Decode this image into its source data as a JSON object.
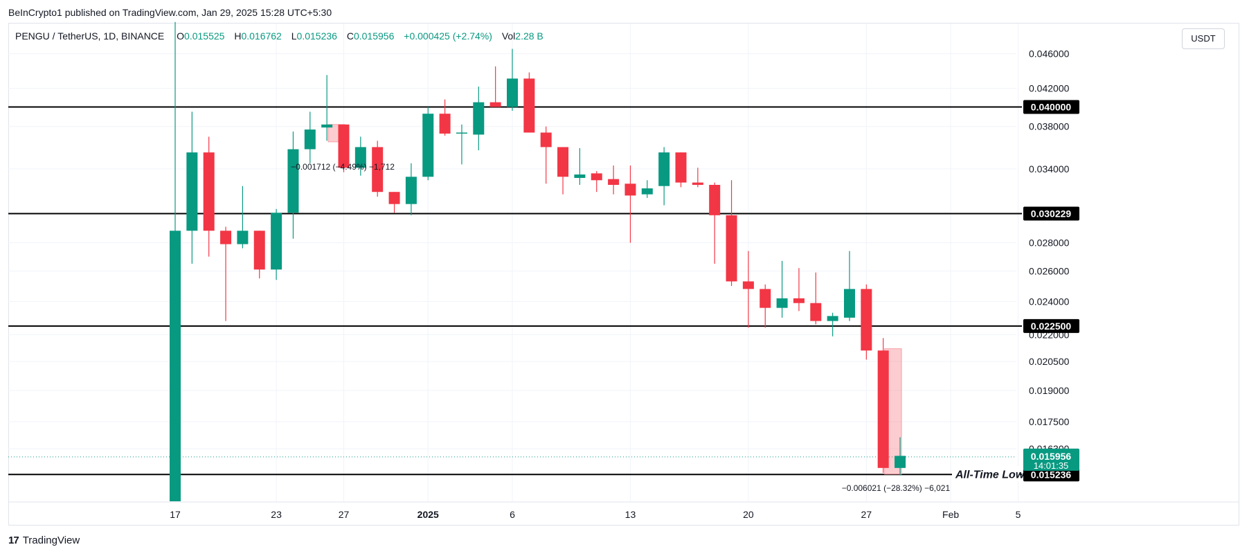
{
  "header": {
    "published_by": "BeInCrypto1 published on TradingView.com, Jan 29, 2025 15:28 UTC+5:30"
  },
  "legend": {
    "symbol": "PENGU / TetherUS, 1D, BINANCE",
    "o_label": "O",
    "o_value": "0.015525",
    "h_label": "H",
    "h_value": "0.016762",
    "l_label": "L",
    "l_value": "0.015236",
    "c_label": "C",
    "c_value": "0.015956",
    "change": "+0.000425 (+2.74%)",
    "vol_label": "Vol",
    "vol_value": "2.28 B"
  },
  "currency_button": "USDT",
  "footer": {
    "brand": "TradingView",
    "logo_text": "17"
  },
  "colors": {
    "up": "#089981",
    "down": "#f23645",
    "level": "#000000",
    "grid": "#f0f3fa"
  },
  "chart_data": {
    "type": "candlestick",
    "title": "PENGU / TetherUS, 1D, BINANCE",
    "scale": "log",
    "ylim": [
      0.0142,
      0.0498
    ],
    "y_ticks": [
      "0.046000",
      "0.042000",
      "0.038000",
      "0.034000",
      "0.028000",
      "0.026000",
      "0.024000",
      "0.022000",
      "0.020500",
      "0.019000",
      "0.017500",
      "0.016300"
    ],
    "x_ticks": [
      {
        "label": "17",
        "i": 0
      },
      {
        "label": "23",
        "i": 6
      },
      {
        "label": "27",
        "i": 10
      },
      {
        "label": "2025",
        "i": 15
      },
      {
        "label": "6",
        "i": 20
      },
      {
        "label": "13",
        "i": 27
      },
      {
        "label": "20",
        "i": 34
      },
      {
        "label": "27",
        "i": 41
      },
      {
        "label": "Feb",
        "i": 46
      },
      {
        "label": "5",
        "i": 50
      }
    ],
    "candles": [
      {
        "o": 0.0142,
        "h": 0.05,
        "l": 0.0142,
        "c": 0.0289
      },
      {
        "o": 0.0289,
        "h": 0.0395,
        "l": 0.0265,
        "c": 0.0355
      },
      {
        "o": 0.0355,
        "h": 0.037,
        "l": 0.027,
        "c": 0.0289
      },
      {
        "o": 0.0289,
        "h": 0.0292,
        "l": 0.0228,
        "c": 0.0279
      },
      {
        "o": 0.0279,
        "h": 0.0325,
        "l": 0.0276,
        "c": 0.0289
      },
      {
        "o": 0.0289,
        "h": 0.0289,
        "l": 0.0255,
        "c": 0.0261
      },
      {
        "o": 0.0261,
        "h": 0.0306,
        "l": 0.0254,
        "c": 0.0303
      },
      {
        "o": 0.0303,
        "h": 0.0375,
        "l": 0.0283,
        "c": 0.0358
      },
      {
        "o": 0.0358,
        "h": 0.0395,
        "l": 0.0345,
        "c": 0.0377
      },
      {
        "o": 0.0379,
        "h": 0.0435,
        "l": 0.0366,
        "c": 0.0382
      },
      {
        "o": 0.0382,
        "h": 0.0382,
        "l": 0.0337,
        "c": 0.0341
      },
      {
        "o": 0.0341,
        "h": 0.037,
        "l": 0.0334,
        "c": 0.036
      },
      {
        "o": 0.036,
        "h": 0.0366,
        "l": 0.0316,
        "c": 0.032
      },
      {
        "o": 0.032,
        "h": 0.032,
        "l": 0.0303,
        "c": 0.031
      },
      {
        "o": 0.031,
        "h": 0.0345,
        "l": 0.0301,
        "c": 0.0333
      },
      {
        "o": 0.0333,
        "h": 0.04,
        "l": 0.033,
        "c": 0.0393
      },
      {
        "o": 0.0393,
        "h": 0.0408,
        "l": 0.0371,
        "c": 0.0373
      },
      {
        "o": 0.0373,
        "h": 0.0382,
        "l": 0.0344,
        "c": 0.0374
      },
      {
        "o": 0.0372,
        "h": 0.0422,
        "l": 0.0357,
        "c": 0.0405
      },
      {
        "o": 0.0405,
        "h": 0.0445,
        "l": 0.04,
        "c": 0.04
      },
      {
        "o": 0.04,
        "h": 0.0466,
        "l": 0.0396,
        "c": 0.0431
      },
      {
        "o": 0.0431,
        "h": 0.0438,
        "l": 0.0374,
        "c": 0.0374
      },
      {
        "o": 0.0374,
        "h": 0.038,
        "l": 0.0327,
        "c": 0.036
      },
      {
        "o": 0.036,
        "h": 0.036,
        "l": 0.0318,
        "c": 0.0333
      },
      {
        "o": 0.0332,
        "h": 0.0359,
        "l": 0.0326,
        "c": 0.0335
      },
      {
        "o": 0.0336,
        "h": 0.0338,
        "l": 0.032,
        "c": 0.033
      },
      {
        "o": 0.0331,
        "h": 0.0343,
        "l": 0.0318,
        "c": 0.0326
      },
      {
        "o": 0.0327,
        "h": 0.0343,
        "l": 0.028,
        "c": 0.0317
      },
      {
        "o": 0.0318,
        "h": 0.033,
        "l": 0.0315,
        "c": 0.0323
      },
      {
        "o": 0.0325,
        "h": 0.036,
        "l": 0.0309,
        "c": 0.0355
      },
      {
        "o": 0.0355,
        "h": 0.0355,
        "l": 0.0324,
        "c": 0.0328
      },
      {
        "o": 0.0328,
        "h": 0.0341,
        "l": 0.0324,
        "c": 0.0326
      },
      {
        "o": 0.0326,
        "h": 0.0328,
        "l": 0.0265,
        "c": 0.0301
      },
      {
        "o": 0.0301,
        "h": 0.033,
        "l": 0.025,
        "c": 0.0253
      },
      {
        "o": 0.0253,
        "h": 0.0274,
        "l": 0.0224,
        "c": 0.0248
      },
      {
        "o": 0.0248,
        "h": 0.0251,
        "l": 0.0224,
        "c": 0.0236
      },
      {
        "o": 0.0236,
        "h": 0.0267,
        "l": 0.023,
        "c": 0.0242
      },
      {
        "o": 0.0242,
        "h": 0.0262,
        "l": 0.0234,
        "c": 0.0239
      },
      {
        "o": 0.0239,
        "h": 0.0259,
        "l": 0.0226,
        "c": 0.0228
      },
      {
        "o": 0.0228,
        "h": 0.0233,
        "l": 0.0219,
        "c": 0.0231
      },
      {
        "o": 0.023,
        "h": 0.0274,
        "l": 0.0228,
        "c": 0.0248
      },
      {
        "o": 0.0248,
        "h": 0.0251,
        "l": 0.0206,
        "c": 0.0211
      },
      {
        "o": 0.0211,
        "h": 0.0218,
        "l": 0.0153,
        "c": 0.0155
      },
      {
        "o": 0.0155,
        "h": 0.0168,
        "l": 0.0152,
        "c": 0.016
      }
    ],
    "levels": [
      {
        "value": 0.04,
        "label": "0.040000"
      },
      {
        "value": 0.030229,
        "label": "0.030229"
      },
      {
        "value": 0.0225,
        "label": "0.022500"
      },
      {
        "value": 0.015236,
        "label": "0.015236"
      }
    ],
    "current_price": {
      "value": 0.015956,
      "label": "0.015956",
      "countdown": "14:01:35"
    },
    "annotations": [
      {
        "text": "All-Time Low",
        "at_level": 0.015236
      },
      {
        "text": "−0.001712 (−4.49%) −1,712",
        "from_i": 9,
        "y_from": 0.0382,
        "y_to": 0.0365
      },
      {
        "text": "−0.006021 (−28.32%) −6,021",
        "from_i": 42,
        "y_from": 0.0212,
        "y_to": 0.01525
      }
    ]
  }
}
